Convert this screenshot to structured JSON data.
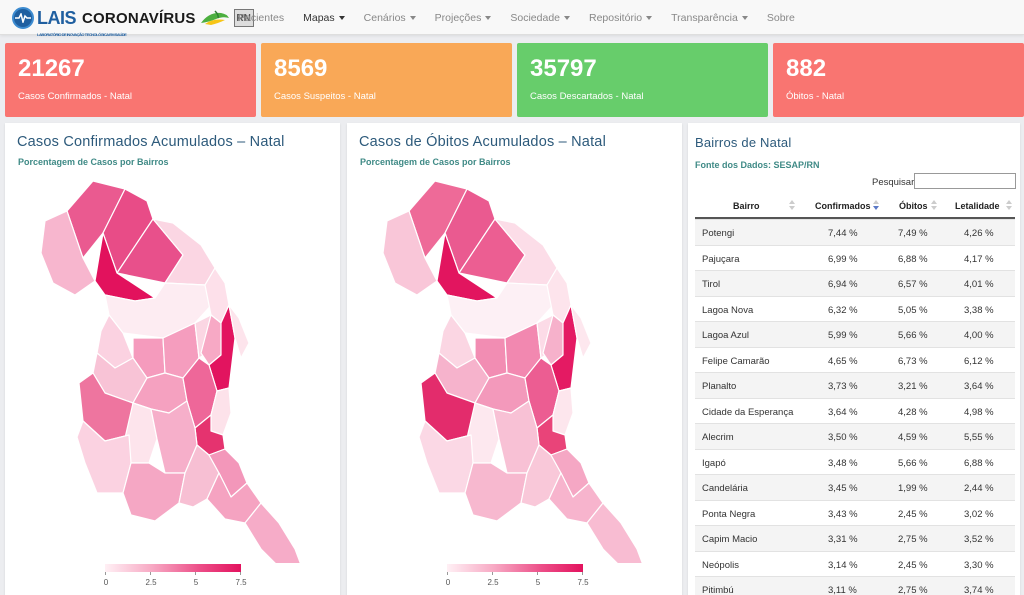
{
  "brand": {
    "lais": "LAIS",
    "lais_tagline": "LABORATÓRIO DE INOVAÇÃO TECNOLÓGICA EM SAÚDE",
    "name": "CORONAVÍRUS",
    "badge": "RN"
  },
  "nav": {
    "items": [
      {
        "label": "Pacientes"
      },
      {
        "label": "Mapas"
      },
      {
        "label": "Cenários"
      },
      {
        "label": "Projeções"
      },
      {
        "label": "Sociedade"
      },
      {
        "label": "Repositório"
      },
      {
        "label": "Transparência"
      },
      {
        "label": "Sobre"
      }
    ]
  },
  "cards": [
    {
      "value": "21267",
      "label": "Casos Confirmados - Natal",
      "color": "#f97571"
    },
    {
      "value": "8569",
      "label": "Casos Suspeitos - Natal",
      "color": "#f9a857"
    },
    {
      "value": "35797",
      "label": "Casos Descartados - Natal",
      "color": "#67cd6b"
    },
    {
      "value": "882",
      "label": "Óbitos - Natal",
      "color": "#f97571"
    }
  ],
  "map_confirmed": {
    "title": "Casos Confirmados Acumulados – Natal",
    "subtitle": "Porcentagem de Casos por Bairros",
    "legend": [
      "0",
      "2.5",
      "5",
      "7.5"
    ]
  },
  "map_deaths": {
    "title": "Casos de Óbitos Acumulados – Natal",
    "subtitle": "Porcentagem de Casos por Bairros",
    "legend": [
      "0",
      "2.5",
      "5",
      "7.5"
    ]
  },
  "table": {
    "title": "Bairros de Natal",
    "source": "Fonte dos Dados: SESAP/RN",
    "search_label": "Pesquisar",
    "search_value": "",
    "columns": [
      "Bairro",
      "Confirmados",
      "Óbitos",
      "Letalidade"
    ],
    "sorted_column": "Confirmados",
    "sort_direction": "descending",
    "rows": [
      [
        "Potengi",
        "7,44 %",
        "7,49 %",
        "4,26 %"
      ],
      [
        "Pajuçara",
        "6,99 %",
        "6,88 %",
        "4,17 %"
      ],
      [
        "Tirol",
        "6,94 %",
        "6,57 %",
        "4,01 %"
      ],
      [
        "Lagoa Nova",
        "6,32 %",
        "5,05 %",
        "3,38 %"
      ],
      [
        "Lagoa Azul",
        "5,99 %",
        "5,66 %",
        "4,00 %"
      ],
      [
        "Felipe Camarão",
        "4,65 %",
        "6,73 %",
        "6,12 %"
      ],
      [
        "Planalto",
        "3,73 %",
        "3,21 %",
        "3,64 %"
      ],
      [
        "Cidade da Esperança",
        "3,64 %",
        "4,28 %",
        "4,98 %"
      ],
      [
        "Alecrim",
        "3,50 %",
        "4,59 %",
        "5,55 %"
      ],
      [
        "Igapó",
        "3,48 %",
        "5,66 %",
        "6,88 %"
      ],
      [
        "Candelária",
        "3,45 %",
        "1,99 %",
        "2,44 %"
      ],
      [
        "Ponta Negra",
        "3,43 %",
        "2,45 %",
        "3,02 %"
      ],
      [
        "Capim Macio",
        "3,31 %",
        "2,75 %",
        "3,52 %"
      ],
      [
        "Neópolis",
        "3,14 %",
        "2,45 %",
        "3,30 %"
      ],
      [
        "Pitimbú",
        "3,11 %",
        "2,75 %",
        "3,74 %"
      ]
    ]
  },
  "colors": {
    "accent_title": "#2d5a7b",
    "accent_sub": "#3f8a86",
    "map_max": "#e3125e",
    "map_min": "#fff0f5"
  }
}
